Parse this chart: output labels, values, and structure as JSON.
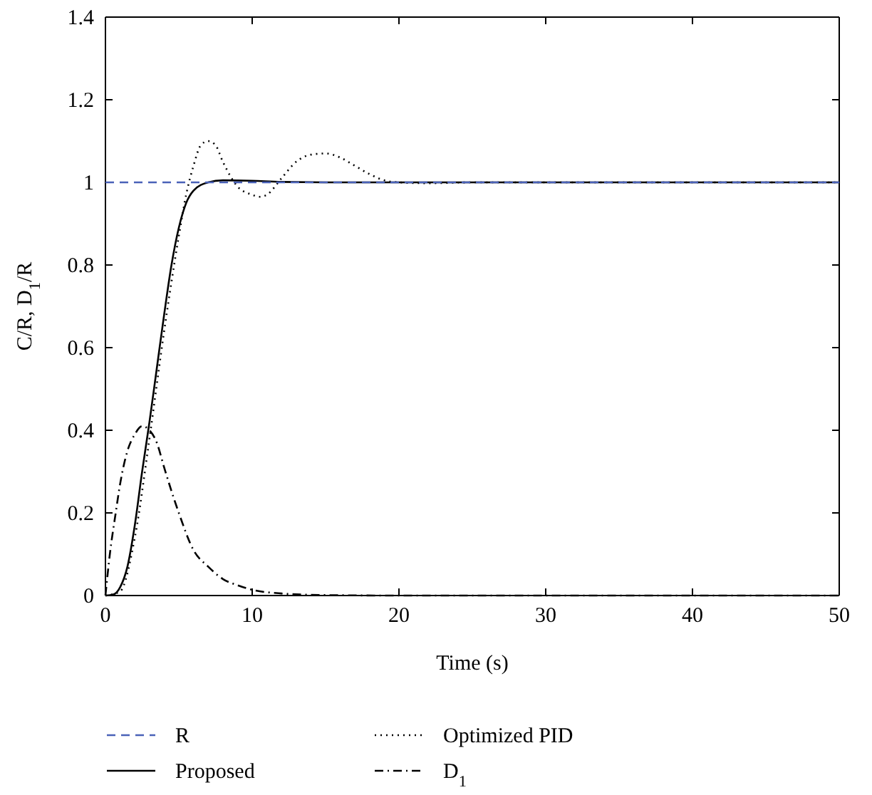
{
  "chart_data": {
    "type": "line",
    "xlabel": "Time (s)",
    "ylabel": "C/R, D$_{1}$/R",
    "xlim": [
      0,
      50
    ],
    "ylim": [
      0,
      1.4
    ],
    "xticks": [
      0,
      10,
      20,
      30,
      40,
      50
    ],
    "yticks": [
      0,
      0.2,
      0.4,
      0.6,
      0.8,
      1,
      1.2,
      1.4
    ],
    "legend": "bottom",
    "grid": false,
    "series": [
      {
        "name": "R",
        "color": "#4a62b8",
        "line_style": "dashed",
        "x": [
          0,
          50
        ],
        "values": [
          1,
          1
        ]
      },
      {
        "name": "Proposed",
        "color": "#000000",
        "line_style": "solid",
        "x": [
          0,
          0.5,
          1,
          1.5,
          2,
          2.5,
          3,
          3.5,
          4,
          4.5,
          5,
          5.5,
          6,
          7,
          8,
          10,
          12,
          15,
          50
        ],
        "values": [
          0,
          0.002,
          0.02,
          0.07,
          0.17,
          0.3,
          0.42,
          0.55,
          0.68,
          0.8,
          0.89,
          0.95,
          0.98,
          1.0,
          1.005,
          1.004,
          1.001,
          1,
          1
        ]
      },
      {
        "name": "Optimized PID",
        "color": "#000000",
        "line_style": "dotted",
        "x": [
          0,
          1,
          2,
          3,
          4,
          5,
          5.5,
          6,
          6.5,
          7,
          7.5,
          8,
          9,
          10,
          10.5,
          11,
          12,
          13,
          14,
          15,
          16,
          17,
          18,
          19,
          20,
          22,
          25,
          50
        ],
        "values": [
          0,
          0.01,
          0.14,
          0.38,
          0.64,
          0.87,
          0.97,
          1.04,
          1.09,
          1.1,
          1.09,
          1.05,
          0.99,
          0.97,
          0.965,
          0.97,
          1.01,
          1.05,
          1.067,
          1.07,
          1.06,
          1.04,
          1.02,
          1.005,
          1.0,
          0.998,
          1,
          1
        ]
      },
      {
        "name": "D$_{1}$",
        "color": "#000000",
        "line_style": "dashdot",
        "x": [
          0,
          0.3,
          0.7,
          1,
          1.5,
          2,
          2.5,
          3,
          3.5,
          4,
          5,
          6,
          7,
          8,
          9,
          10,
          12,
          15,
          20,
          50
        ],
        "values": [
          0,
          0.1,
          0.2,
          0.27,
          0.35,
          0.39,
          0.41,
          0.4,
          0.37,
          0.31,
          0.2,
          0.11,
          0.07,
          0.04,
          0.025,
          0.014,
          0.005,
          0.001,
          0,
          0
        ]
      }
    ]
  }
}
